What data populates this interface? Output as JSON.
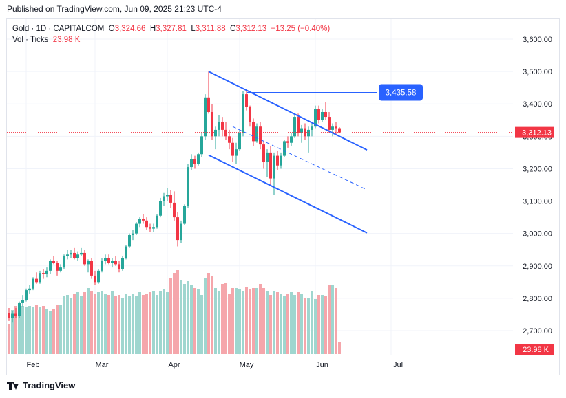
{
  "header": {
    "published": "Published on TradingView.com, Jun 09, 2025 21:23 UTC-4"
  },
  "legend": {
    "symbol": "Gold · 1D · CAPITALCOM",
    "o_label": "O",
    "o_value": "3,324.66",
    "h_label": "H",
    "h_value": "3,327.81",
    "l_label": "L",
    "l_value": "3,311.88",
    "c_label": "C",
    "c_value": "3,312.13",
    "change": "−13.25 (−0.40%)",
    "vol_label": "Vol · Ticks",
    "vol_value": "23.98 K"
  },
  "footer": {
    "brand": "TradingView"
  },
  "colors": {
    "up": "#26a69a",
    "down": "#f23645",
    "up_vol": "#9fd6cf",
    "down_vol": "#f5a6ab",
    "line": "#2962ff",
    "label_blue": "#2962ff",
    "price_label": "#f23645"
  },
  "chart_data": {
    "type": "candlestick",
    "symbol": "Gold",
    "interval": "1D",
    "ylim": [
      2640,
      3640
    ],
    "yticks": [
      "3,600.00",
      "3,500.00",
      "3,400.00",
      "3,300.00",
      "3,200.00",
      "3,100.00",
      "3,000.00",
      "2,900.00",
      "2,800.00",
      "2,700.00"
    ],
    "ytick_values": [
      3600,
      3500,
      3400,
      3300,
      3200,
      3100,
      3000,
      2900,
      2800,
      2700
    ],
    "xlabels": [
      {
        "label": "Feb",
        "index": 5
      },
      {
        "label": "Mar",
        "index": 25
      },
      {
        "label": "Apr",
        "index": 46
      },
      {
        "label": "May",
        "index": 67
      },
      {
        "label": "Jun",
        "index": 89
      },
      {
        "label": "Jul",
        "index": 111
      }
    ],
    "last_price_label": "3,312.13",
    "last_price": 3312.13,
    "volume_label": "23.98 K",
    "resistance_label": "3,435.58",
    "resistance": 3435.58,
    "candles": [
      [
        2755,
        2770,
        2730,
        2740
      ],
      [
        2740,
        2760,
        2725,
        2752
      ],
      [
        2752,
        2770,
        2740,
        2745
      ],
      [
        2745,
        2790,
        2740,
        2785
      ],
      [
        2785,
        2810,
        2775,
        2795
      ],
      [
        2795,
        2830,
        2790,
        2825
      ],
      [
        2825,
        2840,
        2815,
        2830
      ],
      [
        2830,
        2865,
        2825,
        2860
      ],
      [
        2860,
        2880,
        2845,
        2850
      ],
      [
        2850,
        2885,
        2845,
        2878
      ],
      [
        2878,
        2890,
        2860,
        2875
      ],
      [
        2875,
        2895,
        2865,
        2885
      ],
      [
        2885,
        2920,
        2875,
        2915
      ],
      [
        2915,
        2930,
        2905,
        2910
      ],
      [
        2910,
        2915,
        2870,
        2885
      ],
      [
        2885,
        2905,
        2880,
        2895
      ],
      [
        2895,
        2935,
        2890,
        2930
      ],
      [
        2930,
        2950,
        2920,
        2935
      ],
      [
        2935,
        2950,
        2925,
        2940
      ],
      [
        2940,
        2955,
        2920,
        2925
      ],
      [
        2925,
        2945,
        2915,
        2935
      ],
      [
        2935,
        2955,
        2930,
        2940
      ],
      [
        2940,
        2950,
        2900,
        2905
      ],
      [
        2905,
        2920,
        2880,
        2915
      ],
      [
        2915,
        2925,
        2860,
        2870
      ],
      [
        2870,
        2885,
        2840,
        2850
      ],
      [
        2850,
        2890,
        2845,
        2885
      ],
      [
        2885,
        2925,
        2880,
        2915
      ],
      [
        2915,
        2935,
        2905,
        2925
      ],
      [
        2925,
        2935,
        2905,
        2910
      ],
      [
        2910,
        2925,
        2895,
        2915
      ],
      [
        2915,
        2930,
        2900,
        2905
      ],
      [
        2905,
        2915,
        2880,
        2890
      ],
      [
        2890,
        2930,
        2885,
        2925
      ],
      [
        2925,
        2965,
        2920,
        2960
      ],
      [
        2960,
        3000,
        2955,
        2995
      ],
      [
        2995,
        3010,
        2980,
        3000
      ],
      [
        3000,
        3035,
        2995,
        3030
      ],
      [
        3030,
        3050,
        3020,
        3045
      ],
      [
        3045,
        3060,
        3030,
        3040
      ],
      [
        3040,
        3050,
        3010,
        3020
      ],
      [
        3020,
        3030,
        3005,
        3015
      ],
      [
        3015,
        3030,
        3005,
        3020
      ],
      [
        3020,
        3060,
        3015,
        3055
      ],
      [
        3055,
        3110,
        3050,
        3100
      ],
      [
        3100,
        3125,
        3085,
        3115
      ],
      [
        3115,
        3140,
        3100,
        3120
      ],
      [
        3120,
        3135,
        3080,
        3095
      ],
      [
        3095,
        3130,
        3040,
        3050
      ],
      [
        3050,
        3065,
        2960,
        2980
      ],
      [
        2980,
        3040,
        2970,
        3030
      ],
      [
        3030,
        3090,
        3025,
        3085
      ],
      [
        3085,
        3215,
        3080,
        3205
      ],
      [
        3205,
        3245,
        3195,
        3230
      ],
      [
        3230,
        3240,
        3200,
        3215
      ],
      [
        3215,
        3250,
        3210,
        3245
      ],
      [
        3245,
        3310,
        3235,
        3300
      ],
      [
        3300,
        3430,
        3290,
        3420
      ],
      [
        3420,
        3500,
        3370,
        3375
      ],
      [
        3375,
        3400,
        3290,
        3300
      ],
      [
        3300,
        3330,
        3260,
        3320
      ],
      [
        3320,
        3365,
        3300,
        3345
      ],
      [
        3345,
        3360,
        3300,
        3320
      ],
      [
        3320,
        3345,
        3290,
        3300
      ],
      [
        3300,
        3320,
        3260,
        3280
      ],
      [
        3280,
        3295,
        3220,
        3240
      ],
      [
        3240,
        3280,
        3215,
        3260
      ],
      [
        3260,
        3320,
        3255,
        3310
      ],
      [
        3310,
        3440,
        3300,
        3430
      ],
      [
        3430,
        3440,
        3380,
        3390
      ],
      [
        3390,
        3395,
        3330,
        3345
      ],
      [
        3345,
        3355,
        3270,
        3285
      ],
      [
        3285,
        3340,
        3280,
        3330
      ],
      [
        3330,
        3345,
        3260,
        3275
      ],
      [
        3275,
        3285,
        3200,
        3220
      ],
      [
        3220,
        3260,
        3175,
        3250
      ],
      [
        3250,
        3270,
        3150,
        3170
      ],
      [
        3170,
        3250,
        3120,
        3240
      ],
      [
        3240,
        3255,
        3195,
        3210
      ],
      [
        3210,
        3250,
        3200,
        3240
      ],
      [
        3240,
        3290,
        3235,
        3285
      ],
      [
        3285,
        3300,
        3265,
        3280
      ],
      [
        3280,
        3310,
        3270,
        3300
      ],
      [
        3300,
        3370,
        3295,
        3360
      ],
      [
        3360,
        3370,
        3300,
        3310
      ],
      [
        3310,
        3335,
        3280,
        3325
      ],
      [
        3325,
        3340,
        3290,
        3300
      ],
      [
        3300,
        3330,
        3250,
        3320
      ],
      [
        3320,
        3345,
        3300,
        3330
      ],
      [
        3330,
        3395,
        3325,
        3385
      ],
      [
        3385,
        3395,
        3340,
        3350
      ],
      [
        3350,
        3385,
        3345,
        3375
      ],
      [
        3375,
        3405,
        3350,
        3360
      ],
      [
        3360,
        3375,
        3310,
        3320
      ],
      [
        3320,
        3340,
        3300,
        3330
      ],
      [
        3330,
        3345,
        3305,
        3325
      ],
      [
        3325,
        3328,
        3312,
        3312
      ]
    ],
    "volumes": [
      22,
      32,
      35,
      33,
      35,
      34,
      35,
      34,
      36,
      34,
      35,
      33,
      31,
      33,
      36,
      36,
      42,
      43,
      41,
      44,
      45,
      42,
      45,
      48,
      46,
      44,
      45,
      46,
      44,
      43,
      46,
      42,
      43,
      41,
      44,
      42,
      44,
      42,
      45,
      43,
      44,
      45,
      46,
      43,
      46,
      47,
      45,
      55,
      59,
      61,
      54,
      51,
      53,
      50,
      48,
      47,
      43,
      55,
      59,
      57,
      48,
      46,
      51,
      52,
      44,
      48,
      48,
      47,
      46,
      49,
      47,
      48,
      48,
      51,
      48,
      46,
      43,
      46,
      45,
      44,
      42,
      44,
      45,
      43,
      45,
      44,
      41,
      41,
      46,
      40,
      43,
      43,
      42,
      50,
      50,
      48,
      9
    ],
    "drawings": {
      "upper_channel": {
        "from": {
          "index": 58,
          "value": 3500
        },
        "to": {
          "index": 104,
          "value": 3258
        }
      },
      "lower_channel": {
        "from": {
          "index": 58,
          "value": 3242
        },
        "to": {
          "index": 104,
          "value": 3002
        }
      },
      "mid_channel": {
        "from": {
          "index": 65,
          "value": 3330
        },
        "to": {
          "index": 104,
          "value": 3135
        }
      },
      "resistance_line": {
        "from_index": 69,
        "to_index": 107,
        "value": 3435.58
      }
    }
  }
}
